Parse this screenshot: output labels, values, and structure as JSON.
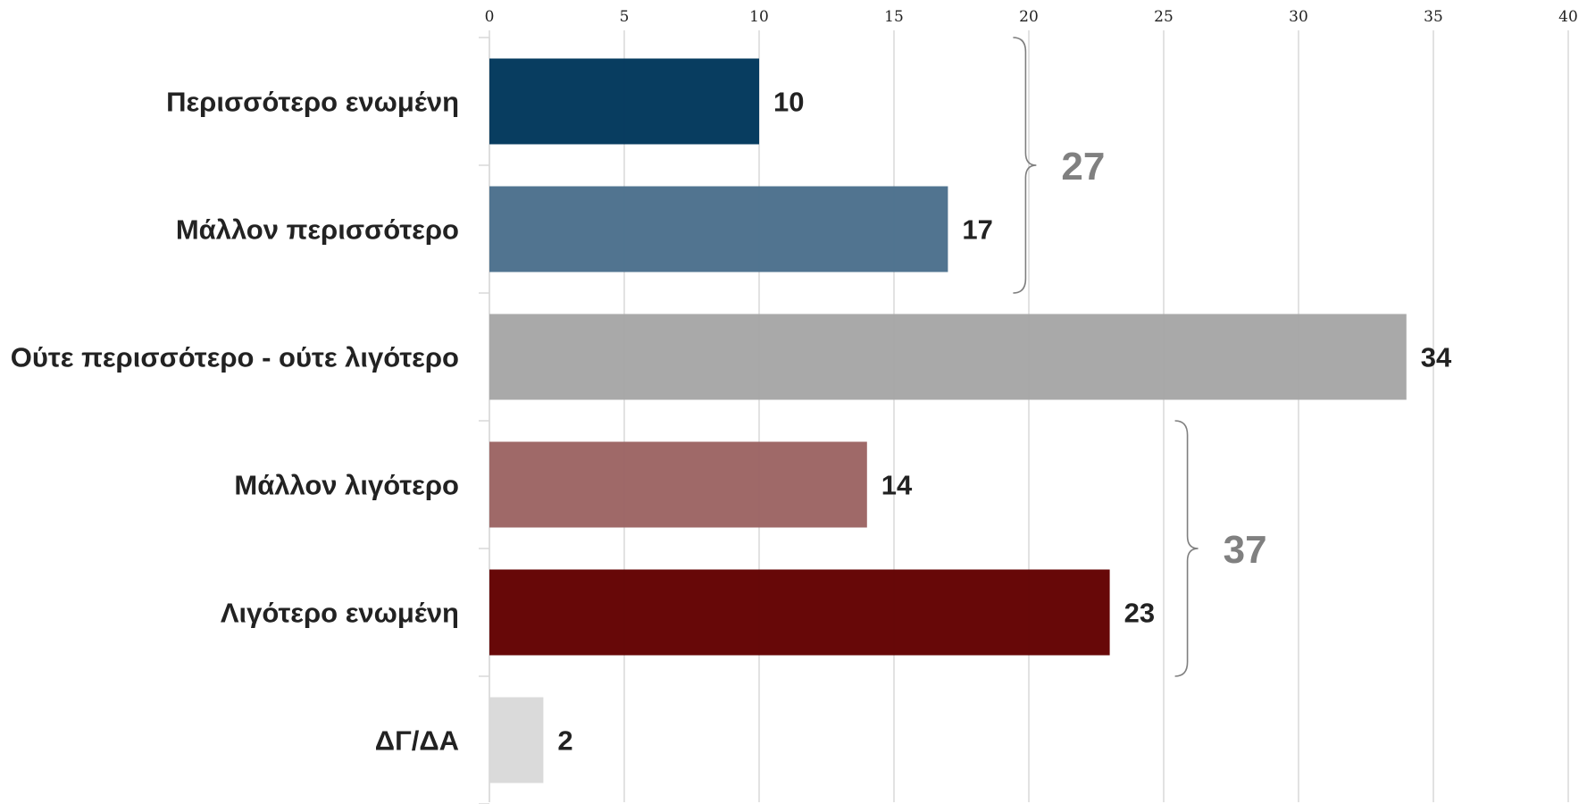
{
  "chart_data": {
    "type": "bar",
    "orientation": "horizontal",
    "title": "",
    "xlabel": "",
    "ylabel": "",
    "xlim": [
      0,
      40
    ],
    "x_ticks": [
      0,
      5,
      10,
      15,
      20,
      25,
      30,
      35,
      40
    ],
    "grid": true,
    "categories": [
      "Περισσότερο ενωμένη",
      "Μάλλον περισσότερο",
      "Ούτε περισσότερο - ούτε λιγότερο",
      "Μάλλον λιγότερο",
      "Λιγότερο ενωμένη",
      "ΔΓ/ΔΑ"
    ],
    "values": [
      10,
      17,
      34,
      14,
      23,
      2
    ],
    "value_labels": [
      "10",
      "17",
      "34",
      "14",
      "23",
      "2"
    ],
    "colors": [
      "#00375b",
      "#4b6f8c",
      "#a6a6a6",
      "#9c6463",
      "#620000",
      "#d9d9d9"
    ],
    "groups": [
      {
        "label": "27",
        "from": 0,
        "to": 1
      },
      {
        "label": "37",
        "from": 3,
        "to": 4
      }
    ]
  }
}
